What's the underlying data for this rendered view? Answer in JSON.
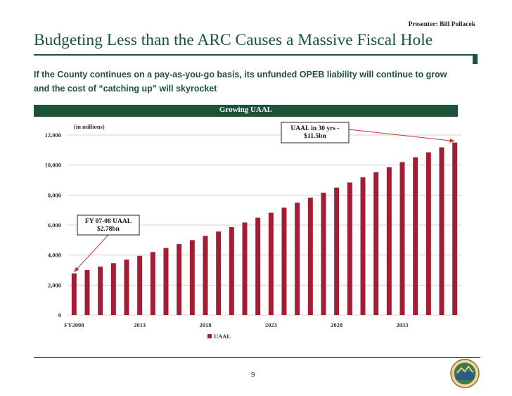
{
  "header": {
    "presenter": "Presenter: Bill Pollacek",
    "title": "Budgeting Less than the ARC Causes a Massive Fiscal Hole",
    "subtitle": "If the County continues on a pay-as-you-go basis, its unfunded OPEB liability will continue to grow and the cost of “catching up” will skyrocket"
  },
  "chart_data": {
    "type": "bar",
    "title": "Growing UAAL",
    "units_note": "(in millions)",
    "series": [
      {
        "name": "UAAL",
        "color": "#a31e34",
        "values": [
          2780,
          3000,
          3230,
          3460,
          3700,
          3950,
          4200,
          4470,
          4730,
          5000,
          5280,
          5570,
          5860,
          6170,
          6490,
          6820,
          7160,
          7500,
          7830,
          8160,
          8500,
          8840,
          9180,
          9520,
          9860,
          10200,
          10520,
          10850,
          11180,
          11500
        ]
      }
    ],
    "x_start": 2008,
    "x_ticks": [
      "FY2008",
      "2013",
      "2018",
      "2023",
      "2028",
      "2033"
    ],
    "y_ticks": [
      "0",
      "2,000",
      "4,000",
      "6,000",
      "8,000",
      "10,000",
      "12,000"
    ],
    "ylim": [
      0,
      12000
    ],
    "legend": [
      "UAAL"
    ],
    "annotations": [
      {
        "label_lines": [
          "FY 07-08 UAAL",
          "$2.78bn"
        ],
        "target_index": 0
      },
      {
        "label_lines": [
          "UAAL in 30 yrs -",
          "$11.5bn"
        ],
        "target_index": 29
      }
    ]
  },
  "footer": {
    "page_number": "9"
  },
  "colors": {
    "brand_green": "#1d5238",
    "bar_red": "#a31e34",
    "arrow_red": "#c0392b"
  }
}
